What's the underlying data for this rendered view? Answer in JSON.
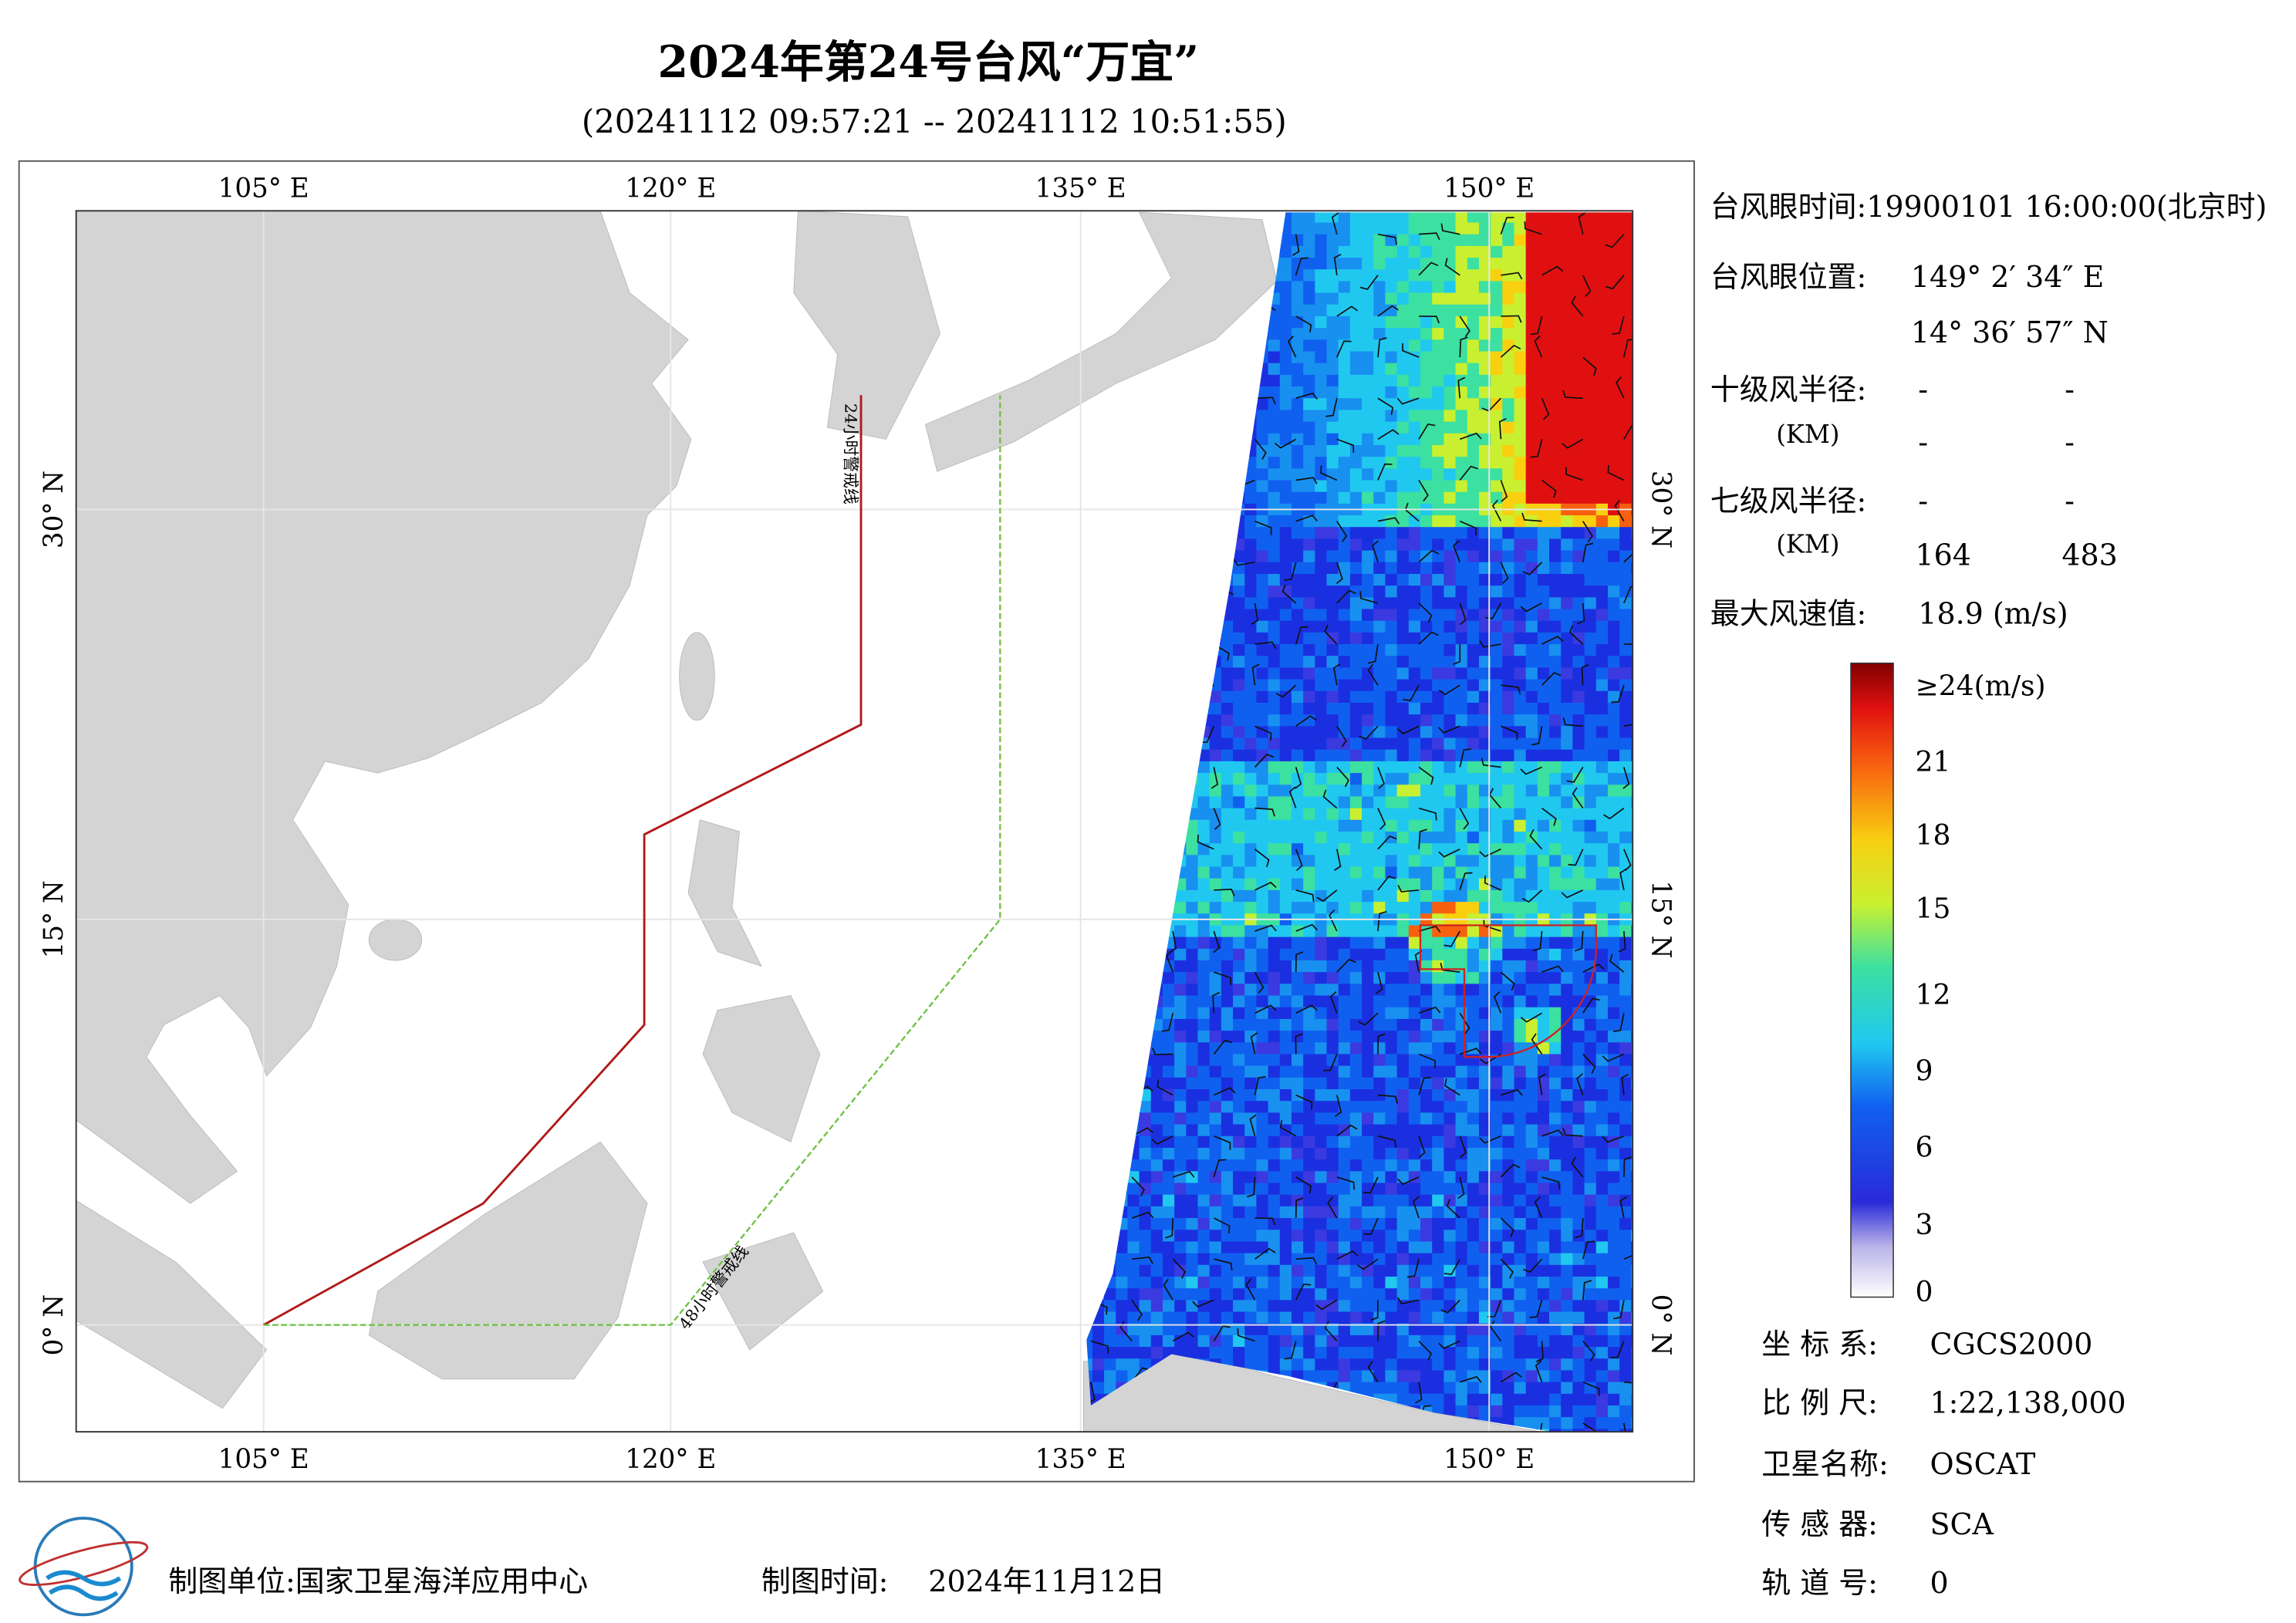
{
  "header": {
    "title": "2024年第24号台风“万宜”",
    "subtitle": "(20241112 09:57:21 -- 20241112 10:51:55)"
  },
  "map": {
    "lon_labels": [
      "105° E",
      "120° E",
      "135° E",
      "150° E"
    ],
    "lat_labels": [
      "30° N",
      "15° N",
      "0° N"
    ],
    "line_24h": "24小时警戒线",
    "line_48h": "48小时警戒线"
  },
  "info": {
    "eye_time": "台风眼时间:19900101 16:00:00(北京时)",
    "eye_pos_label": "台风眼位置:",
    "eye_lon": "149° 2′ 34″ E",
    "eye_lat": "14° 36′ 57″ N",
    "r10_label": "十级风半径:",
    "r10_unit": "(KM)",
    "r10_values": [
      "-",
      "-",
      "-",
      "-"
    ],
    "r7_label": "七级风半径:",
    "r7_unit": "(KM)",
    "r7_values": [
      "-",
      "-",
      "164",
      "483"
    ],
    "max_label": "最大风速值:",
    "max_value": "18.9  (m/s)"
  },
  "colorbar": {
    "labels": [
      "≥24(m/s)",
      "21",
      "18",
      "15",
      "12",
      "9",
      "6",
      "3",
      "0"
    ]
  },
  "meta": {
    "rows": [
      [
        "坐 标 系:",
        "CGCS2000"
      ],
      [
        "比 例 尺:",
        "1:22,138,000"
      ],
      [
        "卫星名称:",
        "OSCAT"
      ],
      [
        "传 感 器:",
        "SCA"
      ],
      [
        "轨 道 号:",
        "0"
      ]
    ]
  },
  "footer": {
    "unit": "制图单位:国家卫星海洋应用中心",
    "time_label": "制图时间:",
    "time": "2024年11月12日"
  }
}
